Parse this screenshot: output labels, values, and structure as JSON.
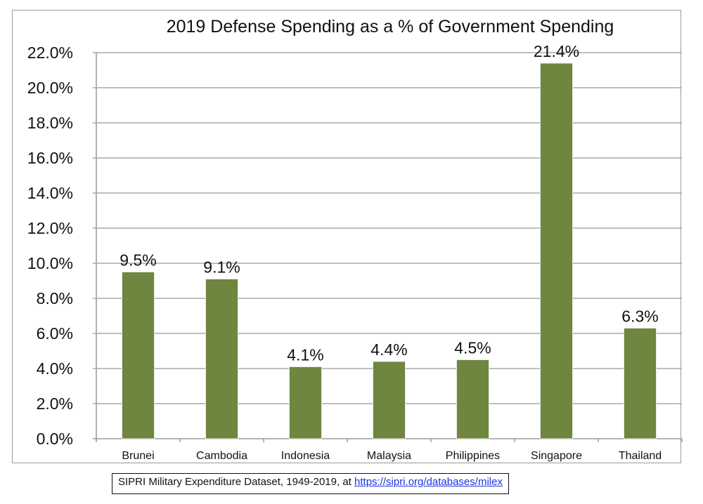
{
  "chart_data": {
    "type": "bar",
    "title": "2019 Defense Spending as a % of Government Spending",
    "xlabel": "",
    "ylabel": "",
    "categories": [
      "Brunei",
      "Cambodia",
      "Indonesia",
      "Malaysia",
      "Philippines",
      "Singapore",
      "Thailand"
    ],
    "values": [
      9.5,
      9.1,
      4.1,
      4.4,
      4.5,
      21.4,
      6.3
    ],
    "data_labels": [
      "9.5%",
      "9.1%",
      "4.1%",
      "4.4%",
      "4.5%",
      "21.4%",
      "6.3%"
    ],
    "ylim": [
      0,
      22
    ],
    "yticks": [
      0,
      2,
      4,
      6,
      8,
      10,
      12,
      14,
      16,
      18,
      20,
      22
    ],
    "ytick_labels": [
      "0.0%",
      "2.0%",
      "4.0%",
      "6.0%",
      "8.0%",
      "10.0%",
      "12.0%",
      "14.0%",
      "16.0%",
      "18.0%",
      "20.0%",
      "22.0%"
    ],
    "grid": true,
    "legend": "none",
    "bar_color": "#6e8640"
  },
  "source": {
    "text": "SIPRI Military Expenditure Dataset,  1949-2019, at ",
    "link_text": "https://sipri.org/databases/milex"
  }
}
